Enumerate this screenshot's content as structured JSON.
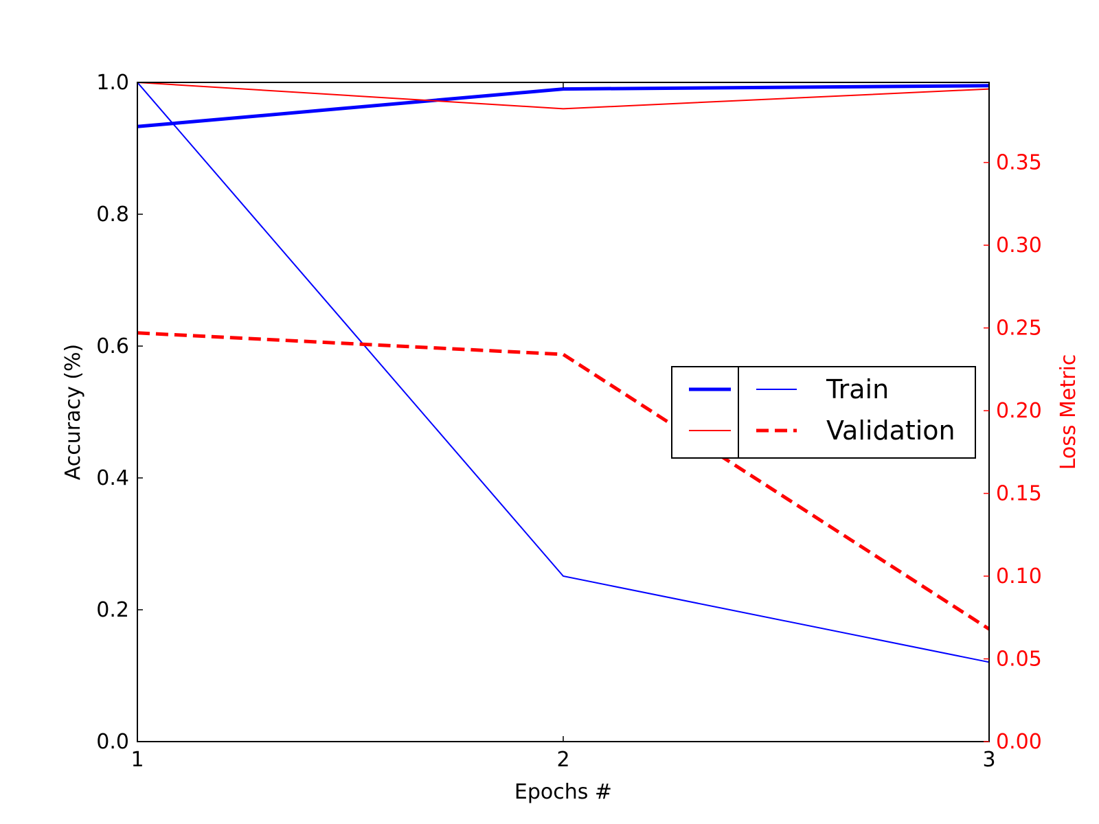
{
  "chart_data": {
    "type": "line",
    "x": [
      1,
      2,
      3
    ],
    "xlabel": "Epochs #",
    "ylabel_left": "Accuracy (%)",
    "ylabel_right": "Loss Metric",
    "xlim": [
      1,
      3
    ],
    "ylim_left": [
      0.0,
      1.0
    ],
    "ylim_right": [
      0.0,
      0.3984
    ],
    "x_ticks": [
      "1",
      "2",
      "3"
    ],
    "y_ticks_left": [
      "0.0",
      "0.2",
      "0.4",
      "0.6",
      "0.8",
      "1.0"
    ],
    "y_ticks_right": [
      "0.00",
      "0.05",
      "0.10",
      "0.15",
      "0.20",
      "0.25",
      "0.30",
      "0.35"
    ],
    "grid": false,
    "legend_position": "center-right",
    "legend_labels": [
      "Train",
      "Validation"
    ],
    "colors": {
      "accuracy": "#0000ff",
      "loss": "#ff0000",
      "axis": "#000000"
    },
    "series": [
      {
        "axis": "left",
        "style": "thick-solid",
        "color": "#0000ff",
        "values": [
          0.933,
          0.99,
          0.995
        ]
      },
      {
        "axis": "left",
        "style": "thin-solid",
        "color": "#ff0000",
        "values": [
          1.0,
          0.96,
          0.99
        ]
      },
      {
        "axis": "right",
        "style": "thin-solid",
        "color": "#0000ff",
        "values": [
          0.3984,
          0.1,
          0.048
        ]
      },
      {
        "axis": "right",
        "style": "dashed",
        "color": "#ff0000",
        "values": [
          0.247,
          0.234,
          0.068
        ]
      }
    ]
  }
}
